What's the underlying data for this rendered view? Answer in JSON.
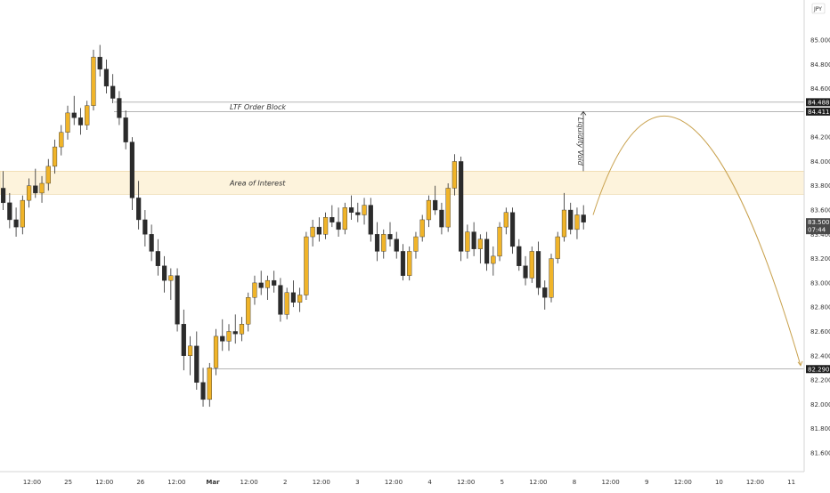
{
  "chart_data": {
    "type": "candlestick",
    "currency_badge": "JPY",
    "y_axis": {
      "ylim": [
        81.46,
        85.22
      ],
      "tick_labels": [
        "85.000",
        "84.800",
        "84.600",
        "84.400",
        "84.200",
        "84.000",
        "83.800",
        "83.600",
        "83.400",
        "83.200",
        "83.000",
        "82.800",
        "82.600",
        "82.400",
        "82.200",
        "82.000",
        "81.800",
        "81.600"
      ]
    },
    "x_axis": {
      "tick_labels": [
        "12:00",
        "25",
        "12:00",
        "26",
        "12:00",
        "Mar",
        "12:00",
        "2",
        "12:00",
        "3",
        "12:00",
        "4",
        "12:00",
        "5",
        "12:00",
        "8",
        "12:00",
        "9",
        "12:00",
        "10",
        "12:00",
        "11"
      ],
      "bold_ticks": [
        "Mar"
      ]
    },
    "price_labels": [
      {
        "value": 84.488,
        "text": "84.488",
        "color": "#1e1e1e"
      },
      {
        "value": 84.411,
        "text": "84.411",
        "color": "#1e1e1e"
      },
      {
        "value": 83.5,
        "text": "83.500",
        "sub": "07:44",
        "color": "#4a4a4a"
      },
      {
        "value": 82.29,
        "text": "82.290",
        "color": "#1e1e1e"
      }
    ],
    "annotations": {
      "order_block": {
        "label": "LTF Order Block",
        "top": 84.488,
        "bottom": 84.411
      },
      "area_of_interest": {
        "label": "Area of Interest",
        "top": 83.92,
        "bottom": 83.73
      },
      "liquidity_void": {
        "label": "Liquidity Void",
        "from": 83.92,
        "to": 84.411
      },
      "target_line": {
        "value": 82.29
      }
    },
    "colors": {
      "bull": "#f0b429",
      "bear": "#2b2b2b",
      "zone": "#fdf3dc",
      "arc": "#c9a24f"
    },
    "candles": [
      [
        83.78,
        83.92,
        83.6,
        83.66
      ],
      [
        83.66,
        83.74,
        83.45,
        83.52
      ],
      [
        83.52,
        83.62,
        83.38,
        83.46
      ],
      [
        83.46,
        83.72,
        83.4,
        83.68
      ],
      [
        83.68,
        83.86,
        83.62,
        83.8
      ],
      [
        83.8,
        83.94,
        83.7,
        83.74
      ],
      [
        83.74,
        83.88,
        83.66,
        83.82
      ],
      [
        83.82,
        84.02,
        83.76,
        83.96
      ],
      [
        83.96,
        84.18,
        83.9,
        84.12
      ],
      [
        84.12,
        84.3,
        84.05,
        84.24
      ],
      [
        84.24,
        84.46,
        84.18,
        84.4
      ],
      [
        84.4,
        84.54,
        84.3,
        84.36
      ],
      [
        84.36,
        84.44,
        84.22,
        84.3
      ],
      [
        84.3,
        84.5,
        84.26,
        84.46
      ],
      [
        84.46,
        84.92,
        84.42,
        84.86
      ],
      [
        84.86,
        84.96,
        84.7,
        84.76
      ],
      [
        84.76,
        84.84,
        84.56,
        84.62
      ],
      [
        84.62,
        84.72,
        84.48,
        84.52
      ],
      [
        84.52,
        84.58,
        84.3,
        84.36
      ],
      [
        84.36,
        84.42,
        84.1,
        84.16
      ],
      [
        84.16,
        84.2,
        83.6,
        83.7
      ],
      [
        83.7,
        83.84,
        83.44,
        83.52
      ],
      [
        83.52,
        83.6,
        83.3,
        83.4
      ],
      [
        83.4,
        83.48,
        83.18,
        83.26
      ],
      [
        83.26,
        83.36,
        83.06,
        83.14
      ],
      [
        83.14,
        83.22,
        82.92,
        83.02
      ],
      [
        83.02,
        83.12,
        82.86,
        83.06
      ],
      [
        83.06,
        83.12,
        82.6,
        82.66
      ],
      [
        82.66,
        82.78,
        82.28,
        82.4
      ],
      [
        82.4,
        82.56,
        82.24,
        82.48
      ],
      [
        82.48,
        82.6,
        82.12,
        82.18
      ],
      [
        82.18,
        82.3,
        81.98,
        82.04
      ],
      [
        82.04,
        82.34,
        81.98,
        82.3
      ],
      [
        82.3,
        82.62,
        82.24,
        82.56
      ],
      [
        82.56,
        82.7,
        82.44,
        82.52
      ],
      [
        82.52,
        82.66,
        82.44,
        82.6
      ],
      [
        82.6,
        82.74,
        82.5,
        82.58
      ],
      [
        82.58,
        82.72,
        82.52,
        82.66
      ],
      [
        82.66,
        82.92,
        82.6,
        82.88
      ],
      [
        82.88,
        83.06,
        82.82,
        83.0
      ],
      [
        83.0,
        83.1,
        82.9,
        82.96
      ],
      [
        82.96,
        83.06,
        82.86,
        83.02
      ],
      [
        83.02,
        83.1,
        82.92,
        82.98
      ],
      [
        82.98,
        83.04,
        82.68,
        82.74
      ],
      [
        82.74,
        82.96,
        82.7,
        82.92
      ],
      [
        82.92,
        83.02,
        82.8,
        82.84
      ],
      [
        82.84,
        82.96,
        82.76,
        82.9
      ],
      [
        82.9,
        83.42,
        82.86,
        83.38
      ],
      [
        83.38,
        83.52,
        83.3,
        83.46
      ],
      [
        83.46,
        83.54,
        83.34,
        83.4
      ],
      [
        83.4,
        83.58,
        83.36,
        83.54
      ],
      [
        83.54,
        83.64,
        83.46,
        83.5
      ],
      [
        83.5,
        83.62,
        83.38,
        83.44
      ],
      [
        83.44,
        83.66,
        83.4,
        83.62
      ],
      [
        83.62,
        83.72,
        83.52,
        83.58
      ],
      [
        83.58,
        83.66,
        83.5,
        83.56
      ],
      [
        83.56,
        83.7,
        83.48,
        83.64
      ],
      [
        83.64,
        83.7,
        83.34,
        83.4
      ],
      [
        83.4,
        83.5,
        83.18,
        83.26
      ],
      [
        83.26,
        83.44,
        83.2,
        83.4
      ],
      [
        83.4,
        83.5,
        83.3,
        83.36
      ],
      [
        83.36,
        83.42,
        83.2,
        83.26
      ],
      [
        83.26,
        83.32,
        83.02,
        83.06
      ],
      [
        83.06,
        83.3,
        83.02,
        83.26
      ],
      [
        83.26,
        83.42,
        83.2,
        83.38
      ],
      [
        83.38,
        83.56,
        83.34,
        83.52
      ],
      [
        83.52,
        83.72,
        83.46,
        83.68
      ],
      [
        83.68,
        83.8,
        83.56,
        83.6
      ],
      [
        83.6,
        83.66,
        83.4,
        83.46
      ],
      [
        83.46,
        83.82,
        83.42,
        83.78
      ],
      [
        83.78,
        84.06,
        83.72,
        84.0
      ],
      [
        84.0,
        84.04,
        83.18,
        83.26
      ],
      [
        83.26,
        83.48,
        83.2,
        83.42
      ],
      [
        83.42,
        83.5,
        83.22,
        83.28
      ],
      [
        83.28,
        83.4,
        83.16,
        83.36
      ],
      [
        83.36,
        83.42,
        83.1,
        83.16
      ],
      [
        83.16,
        83.3,
        83.06,
        83.22
      ],
      [
        83.22,
        83.5,
        83.18,
        83.46
      ],
      [
        83.46,
        83.62,
        83.4,
        83.58
      ],
      [
        83.58,
        83.62,
        83.24,
        83.3
      ],
      [
        83.3,
        83.36,
        83.1,
        83.14
      ],
      [
        83.14,
        83.22,
        82.98,
        83.04
      ],
      [
        83.04,
        83.3,
        83.0,
        83.26
      ],
      [
        83.26,
        83.34,
        82.9,
        82.96
      ],
      [
        82.96,
        83.02,
        82.78,
        82.88
      ],
      [
        82.88,
        83.24,
        82.84,
        83.2
      ],
      [
        83.2,
        83.42,
        83.16,
        83.38
      ],
      [
        83.38,
        83.74,
        83.34,
        83.6
      ],
      [
        83.6,
        83.66,
        83.4,
        83.44
      ],
      [
        83.44,
        83.62,
        83.36,
        83.56
      ],
      [
        83.56,
        83.64,
        83.44,
        83.5
      ]
    ],
    "x_start": 0,
    "x_step": 7.24
  }
}
